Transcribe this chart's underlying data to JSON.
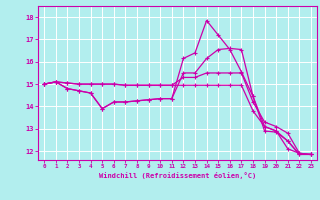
{
  "xlabel": "Windchill (Refroidissement éolien,°C)",
  "background_color": "#b2eeee",
  "grid_color": "#ffffff",
  "line_color": "#cc00aa",
  "spine_color": "#cc00aa",
  "x_ticks": [
    0,
    1,
    2,
    3,
    4,
    5,
    6,
    7,
    8,
    9,
    10,
    11,
    12,
    13,
    14,
    15,
    16,
    17,
    18,
    19,
    20,
    21,
    22,
    23
  ],
  "y_ticks": [
    12,
    13,
    14,
    15,
    16,
    17,
    18
  ],
  "ylim": [
    11.6,
    18.5
  ],
  "xlim": [
    -0.5,
    23.5
  ],
  "series": [
    [
      15.0,
      15.1,
      14.8,
      14.7,
      14.6,
      13.9,
      14.2,
      14.2,
      14.25,
      14.3,
      14.35,
      14.35,
      16.15,
      16.4,
      17.85,
      17.2,
      16.55,
      15.55,
      14.45,
      12.9,
      12.85,
      12.45,
      11.85,
      11.85
    ],
    [
      15.0,
      15.1,
      14.8,
      14.7,
      14.6,
      13.9,
      14.2,
      14.2,
      14.25,
      14.3,
      14.35,
      14.35,
      15.5,
      15.5,
      16.15,
      16.55,
      16.6,
      16.55,
      14.45,
      13.1,
      12.9,
      12.45,
      11.85,
      11.85
    ],
    [
      15.0,
      15.1,
      15.05,
      15.0,
      15.0,
      15.0,
      15.0,
      14.95,
      14.95,
      14.95,
      14.95,
      14.95,
      15.3,
      15.3,
      15.5,
      15.5,
      15.5,
      15.5,
      14.2,
      13.3,
      13.1,
      12.8,
      11.9,
      11.85
    ],
    [
      15.0,
      15.1,
      15.05,
      15.0,
      15.0,
      15.0,
      15.0,
      14.95,
      14.95,
      14.95,
      14.95,
      14.95,
      14.95,
      14.95,
      14.95,
      14.95,
      14.95,
      14.95,
      13.8,
      13.1,
      12.9,
      12.1,
      11.9,
      11.85
    ]
  ]
}
